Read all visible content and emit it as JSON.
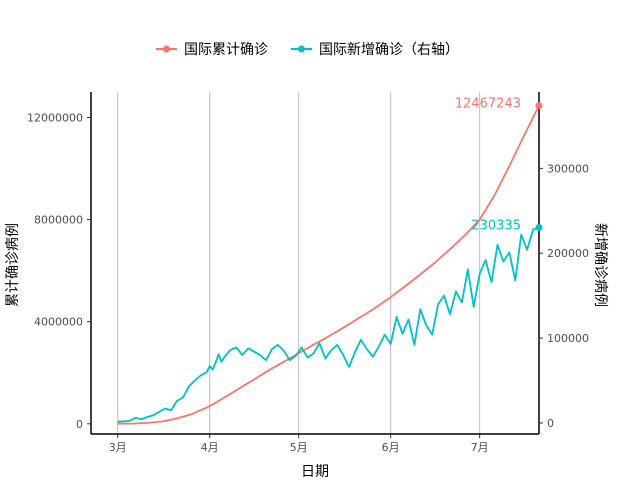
{
  "chart_data": {
    "type": "line",
    "xlabel": "日期",
    "ylabel_left": "累计确诊病例",
    "ylabel_right": "新增确诊病例",
    "x_ticks": [
      {
        "label": "3月",
        "date": "2020-03-01"
      },
      {
        "label": "4月",
        "date": "2020-04-01"
      },
      {
        "label": "5月",
        "date": "2020-05-01"
      },
      {
        "label": "6月",
        "date": "2020-06-01"
      },
      {
        "label": "7月",
        "date": "2020-07-01"
      }
    ],
    "x_range": [
      "2020-02-21",
      "2020-07-21"
    ],
    "y_left_ticks": [
      0,
      4000000,
      8000000,
      12000000
    ],
    "y_left_tick_labels": [
      "0",
      "4000000",
      "8000000",
      "12000000"
    ],
    "y_left_range": [
      -400000,
      13000000
    ],
    "y_right_ticks": [
      0,
      100000,
      200000,
      300000
    ],
    "y_right_tick_labels": [
      "0",
      "100000",
      "200000",
      "300000"
    ],
    "y_right_range": [
      -13000,
      390000
    ],
    "grid": "vertical-major",
    "legend_position": "top",
    "series": [
      {
        "name": "国际累计确诊",
        "axis": "left",
        "color": "#F8766D",
        "marker": "circle-plus",
        "end_label": "12467243",
        "points": [
          [
            "2020-03-01",
            3000
          ],
          [
            "2020-03-06",
            9000
          ],
          [
            "2020-03-11",
            35000
          ],
          [
            "2020-03-16",
            90000
          ],
          [
            "2020-03-21",
            210000
          ],
          [
            "2020-03-26",
            380000
          ],
          [
            "2020-04-01",
            690000
          ],
          [
            "2020-04-06",
            1030000
          ],
          [
            "2020-04-11",
            1390000
          ],
          [
            "2020-04-16",
            1740000
          ],
          [
            "2020-04-21",
            2100000
          ],
          [
            "2020-04-26",
            2430000
          ],
          [
            "2020-05-01",
            2770000
          ],
          [
            "2020-05-06",
            3100000
          ],
          [
            "2020-05-11",
            3420000
          ],
          [
            "2020-05-16",
            3760000
          ],
          [
            "2020-05-21",
            4120000
          ],
          [
            "2020-05-26",
            4480000
          ],
          [
            "2020-06-01",
            4960000
          ],
          [
            "2020-06-06",
            5400000
          ],
          [
            "2020-06-11",
            5850000
          ],
          [
            "2020-06-16",
            6320000
          ],
          [
            "2020-06-21",
            6840000
          ],
          [
            "2020-06-26",
            7380000
          ],
          [
            "2020-07-01",
            8000000
          ],
          [
            "2020-07-06",
            8950000
          ],
          [
            "2020-07-11",
            10100000
          ],
          [
            "2020-07-16",
            11300000
          ],
          [
            "2020-07-21",
            12467243
          ]
        ]
      },
      {
        "name": "国际新增确诊（右轴）",
        "axis": "right",
        "color": "#00BFC4",
        "marker": "circle-plus",
        "end_label": "230335",
        "points": [
          [
            "2020-03-01",
            1500
          ],
          [
            "2020-03-03",
            1800
          ],
          [
            "2020-03-05",
            2500
          ],
          [
            "2020-03-07",
            6000
          ],
          [
            "2020-03-09",
            4500
          ],
          [
            "2020-03-11",
            7000
          ],
          [
            "2020-03-13",
            9000
          ],
          [
            "2020-03-15",
            13000
          ],
          [
            "2020-03-17",
            17000
          ],
          [
            "2020-03-19",
            15000
          ],
          [
            "2020-03-21",
            26000
          ],
          [
            "2020-03-23",
            30000
          ],
          [
            "2020-03-25",
            43000
          ],
          [
            "2020-03-27",
            50000
          ],
          [
            "2020-03-29",
            56000
          ],
          [
            "2020-03-31",
            60000
          ],
          [
            "2020-04-01",
            67000
          ],
          [
            "2020-04-02",
            63000
          ],
          [
            "2020-04-03",
            71000
          ],
          [
            "2020-04-04",
            81000
          ],
          [
            "2020-04-05",
            72000
          ],
          [
            "2020-04-06",
            78000
          ],
          [
            "2020-04-08",
            86000
          ],
          [
            "2020-04-10",
            89000
          ],
          [
            "2020-04-12",
            80000
          ],
          [
            "2020-04-14",
            88000
          ],
          [
            "2020-04-16",
            84000
          ],
          [
            "2020-04-18",
            80000
          ],
          [
            "2020-04-20",
            74000
          ],
          [
            "2020-04-22",
            87000
          ],
          [
            "2020-04-24",
            92000
          ],
          [
            "2020-04-26",
            85000
          ],
          [
            "2020-04-28",
            74000
          ],
          [
            "2020-04-30",
            79000
          ],
          [
            "2020-05-02",
            89000
          ],
          [
            "2020-05-04",
            77000
          ],
          [
            "2020-05-06",
            82000
          ],
          [
            "2020-05-08",
            94000
          ],
          [
            "2020-05-10",
            76000
          ],
          [
            "2020-05-12",
            86000
          ],
          [
            "2020-05-14",
            92000
          ],
          [
            "2020-05-16",
            80000
          ],
          [
            "2020-05-18",
            66000
          ],
          [
            "2020-05-20",
            84000
          ],
          [
            "2020-05-22",
            98000
          ],
          [
            "2020-05-24",
            87000
          ],
          [
            "2020-05-26",
            78000
          ],
          [
            "2020-05-28",
            90000
          ],
          [
            "2020-05-30",
            104000
          ],
          [
            "2020-06-01",
            93000
          ],
          [
            "2020-06-03",
            125000
          ],
          [
            "2020-06-05",
            105000
          ],
          [
            "2020-06-07",
            122000
          ],
          [
            "2020-06-09",
            92000
          ],
          [
            "2020-06-11",
            134000
          ],
          [
            "2020-06-13",
            115000
          ],
          [
            "2020-06-15",
            104000
          ],
          [
            "2020-06-17",
            140000
          ],
          [
            "2020-06-19",
            150000
          ],
          [
            "2020-06-21",
            128000
          ],
          [
            "2020-06-23",
            155000
          ],
          [
            "2020-06-25",
            142000
          ],
          [
            "2020-06-27",
            181000
          ],
          [
            "2020-06-29",
            137000
          ],
          [
            "2020-07-01",
            176000
          ],
          [
            "2020-07-03",
            192000
          ],
          [
            "2020-07-05",
            166000
          ],
          [
            "2020-07-07",
            210000
          ],
          [
            "2020-07-09",
            190000
          ],
          [
            "2020-07-11",
            201000
          ],
          [
            "2020-07-13",
            168000
          ],
          [
            "2020-07-15",
            222000
          ],
          [
            "2020-07-17",
            204000
          ],
          [
            "2020-07-19",
            228000
          ],
          [
            "2020-07-21",
            230335
          ]
        ]
      }
    ]
  }
}
